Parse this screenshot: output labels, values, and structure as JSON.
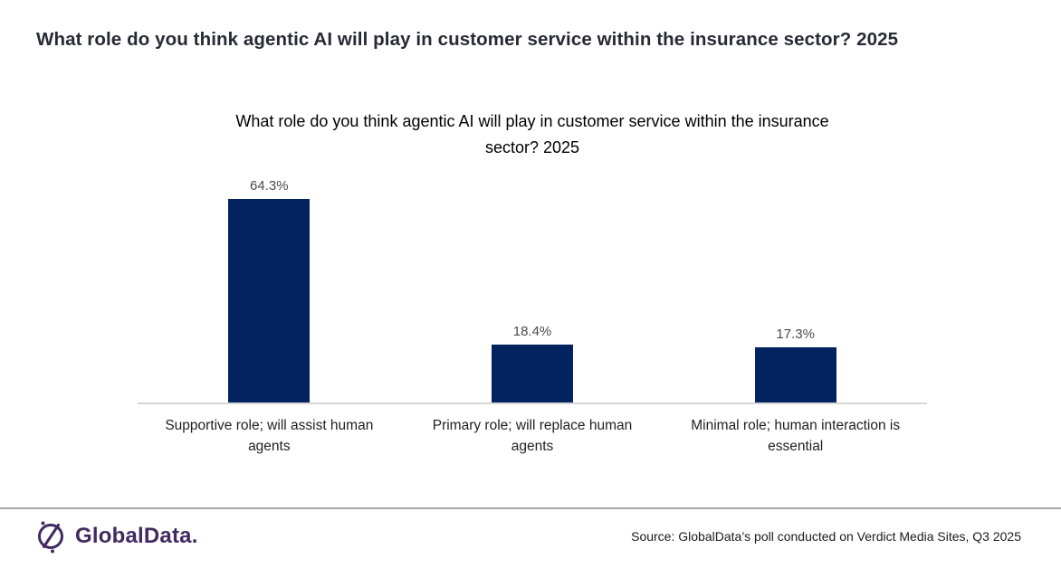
{
  "page": {
    "header_title": "What role do you think agentic AI will play in customer service within the insurance sector? 2025"
  },
  "chart_data": {
    "type": "bar",
    "title": "What role do you think agentic AI will play in customer service within the insurance sector? 2025",
    "categories": [
      "Supportive role; will assist human agents",
      "Primary role; will replace human agents",
      "Minimal role; human interaction is essential"
    ],
    "values": [
      64.3,
      18.4,
      17.3
    ],
    "value_labels": [
      "64.3%",
      "18.4%",
      "17.3%"
    ],
    "xlabel": "",
    "ylabel": "",
    "ylim": [
      0,
      70
    ],
    "grid": false,
    "legend": false,
    "bar_color": "#03235f",
    "axis_line_color": "#d6d6d6",
    "value_label_color": "#4a4a4a"
  },
  "footer": {
    "logo_text": "GlobalData.",
    "logo_color": "#412a60",
    "source_text": "Source: GlobalData’s poll conducted on Verdict Media Sites, Q3 2025"
  }
}
